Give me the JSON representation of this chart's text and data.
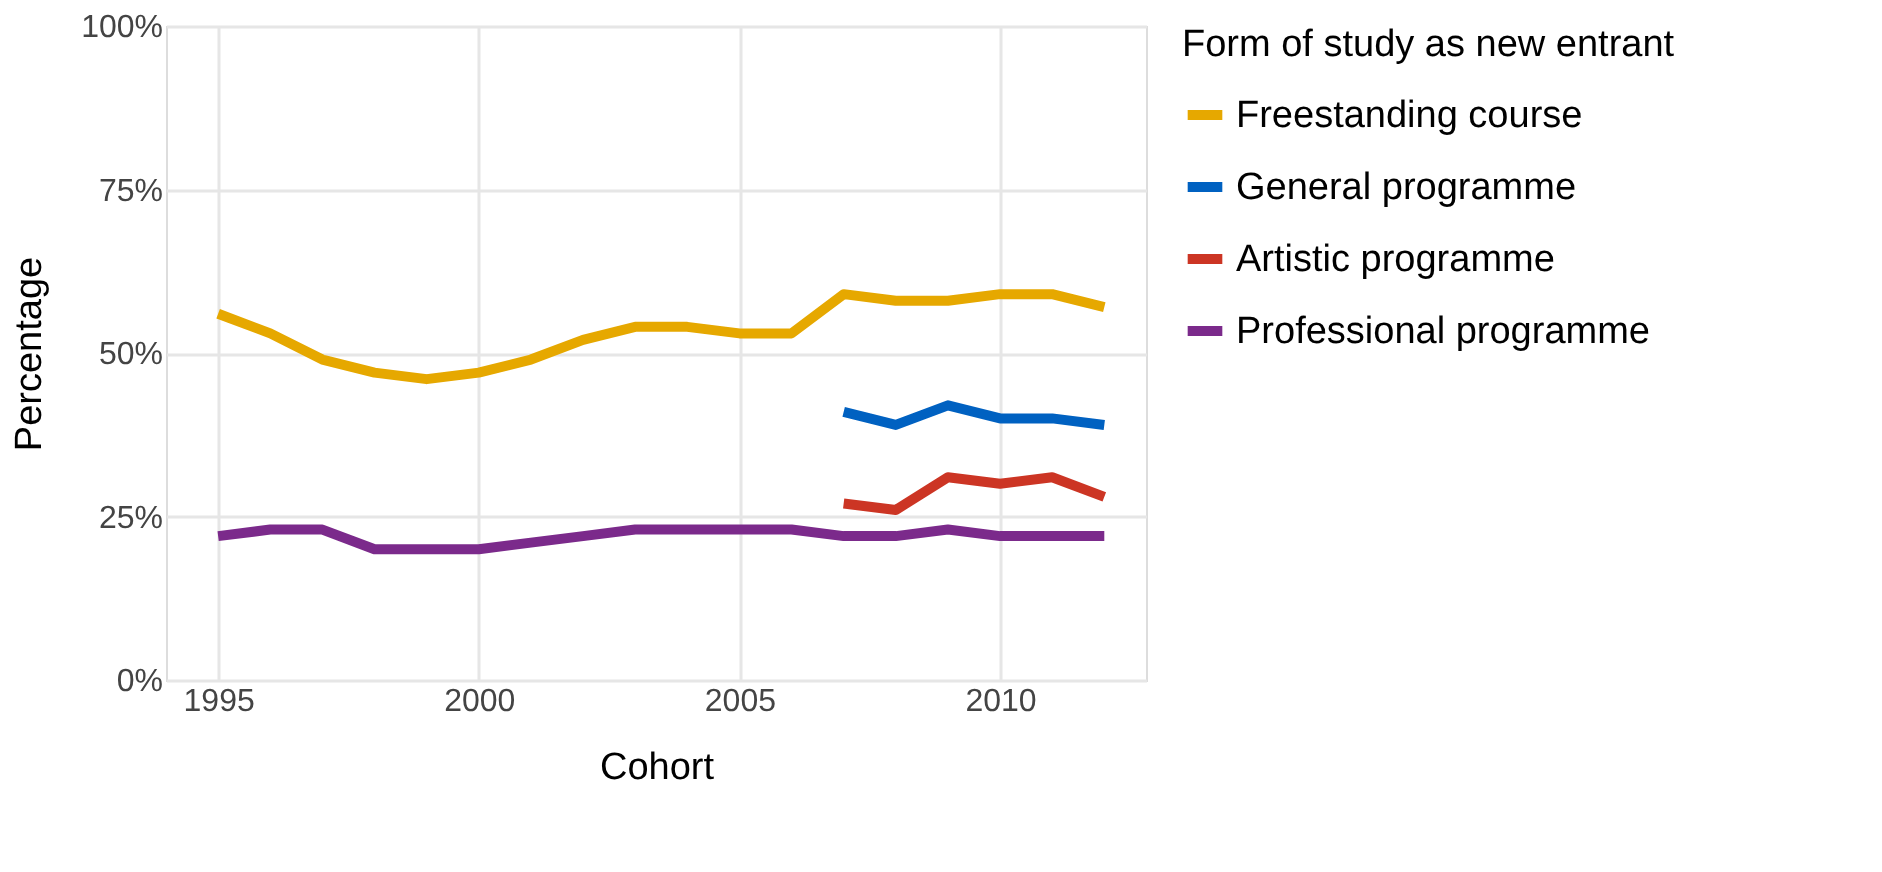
{
  "chart_data": {
    "type": "line",
    "xlabel": "Cohort",
    "ylabel": "Percentage",
    "legend_title": "Form of study as new entrant",
    "x": [
      1995,
      1996,
      1997,
      1998,
      1999,
      2000,
      2001,
      2002,
      2003,
      2004,
      2005,
      2006,
      2007,
      2008,
      2009,
      2010,
      2011,
      2012
    ],
    "series": [
      {
        "name": "Freestanding course",
        "color": "#e6a800",
        "values": [
          56,
          53,
          49,
          47,
          46,
          47,
          49,
          52,
          54,
          54,
          53,
          53,
          59,
          58,
          58,
          59,
          59,
          57
        ]
      },
      {
        "name": "General programme",
        "color": "#0061c1",
        "values": [
          null,
          null,
          null,
          null,
          null,
          null,
          null,
          null,
          null,
          null,
          null,
          null,
          41,
          39,
          42,
          40,
          40,
          39
        ]
      },
      {
        "name": "Artistic programme",
        "color": "#cc3524",
        "values": [
          null,
          null,
          null,
          null,
          null,
          null,
          null,
          null,
          null,
          null,
          null,
          null,
          27,
          26,
          31,
          30,
          31,
          28
        ]
      },
      {
        "name": "Professional programme",
        "color": "#7b2a8b",
        "values": [
          22,
          23,
          23,
          20,
          20,
          20,
          21,
          22,
          23,
          23,
          23,
          23,
          22,
          22,
          23,
          22,
          22,
          22
        ]
      }
    ],
    "xlim": [
      1994,
      2012.8
    ],
    "xticks": [
      1995,
      2000,
      2005,
      2010
    ],
    "ylim": [
      0,
      100
    ],
    "yticks": [
      {
        "value": 0,
        "label": "0%"
      },
      {
        "value": 25,
        "label": "25%"
      },
      {
        "value": 50,
        "label": "50%"
      },
      {
        "value": 75,
        "label": "75%"
      },
      {
        "value": 100,
        "label": "100%"
      }
    ],
    "grid": true,
    "legend": "right",
    "line_style": "solid",
    "marker": "none"
  }
}
